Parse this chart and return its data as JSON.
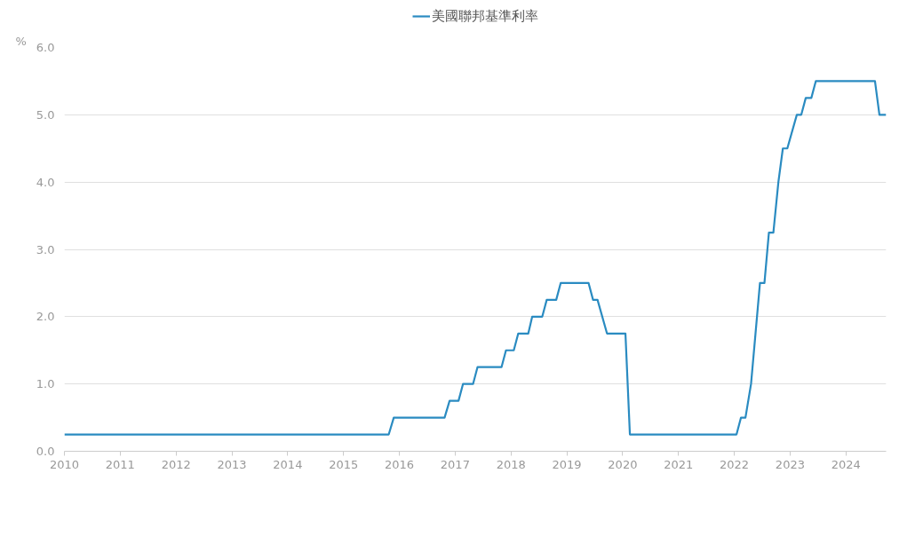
{
  "chart_data": {
    "type": "line",
    "ylabel": "%",
    "legend": "top",
    "grid": "y",
    "x": [
      2010.0,
      2015.81,
      2015.9,
      2016.81,
      2016.9,
      2017.06,
      2017.14,
      2017.32,
      2017.4,
      2017.83,
      2017.91,
      2018.05,
      2018.13,
      2018.31,
      2018.38,
      2018.56,
      2018.64,
      2018.81,
      2018.89,
      2019.39,
      2019.47,
      2019.55,
      2019.72,
      2020.05,
      2020.13,
      2022.04,
      2022.12,
      2022.2,
      2022.3,
      2022.38,
      2022.46,
      2022.54,
      2022.62,
      2022.7,
      2022.79,
      2022.87,
      2022.95,
      2023.12,
      2023.2,
      2023.28,
      2023.38,
      2023.46,
      2024.52,
      2024.6,
      2024.72
    ],
    "series": [
      {
        "name": "美國聯邦基準利率",
        "color": "#2a8bc1",
        "values": [
          0.25,
          0.25,
          0.5,
          0.5,
          0.75,
          0.75,
          1.0,
          1.0,
          1.25,
          1.25,
          1.5,
          1.5,
          1.75,
          1.75,
          2.0,
          2.0,
          2.25,
          2.25,
          2.5,
          2.5,
          2.25,
          2.25,
          1.75,
          1.75,
          0.25,
          0.25,
          0.5,
          0.5,
          1.0,
          1.75,
          2.5,
          2.5,
          3.25,
          3.25,
          4.0,
          4.5,
          4.5,
          5.0,
          5.0,
          5.25,
          5.25,
          5.5,
          5.5,
          5.0,
          5.0
        ]
      }
    ],
    "xlim": [
      2010,
      2024.72
    ],
    "ylim": [
      0,
      6
    ],
    "xticks": [
      2010,
      2011,
      2012,
      2013,
      2014,
      2015,
      2016,
      2017,
      2018,
      2019,
      2020,
      2021,
      2022,
      2023,
      2024
    ],
    "yticks": [
      {
        "value": 0,
        "label": "0.0"
      },
      {
        "value": 1,
        "label": "1.0"
      },
      {
        "value": 2,
        "label": "2.0"
      },
      {
        "value": 3,
        "label": "3.0"
      },
      {
        "value": 4,
        "label": "4.0"
      },
      {
        "value": 5,
        "label": "5.0"
      },
      {
        "value": 6,
        "label": "6.0"
      }
    ]
  }
}
